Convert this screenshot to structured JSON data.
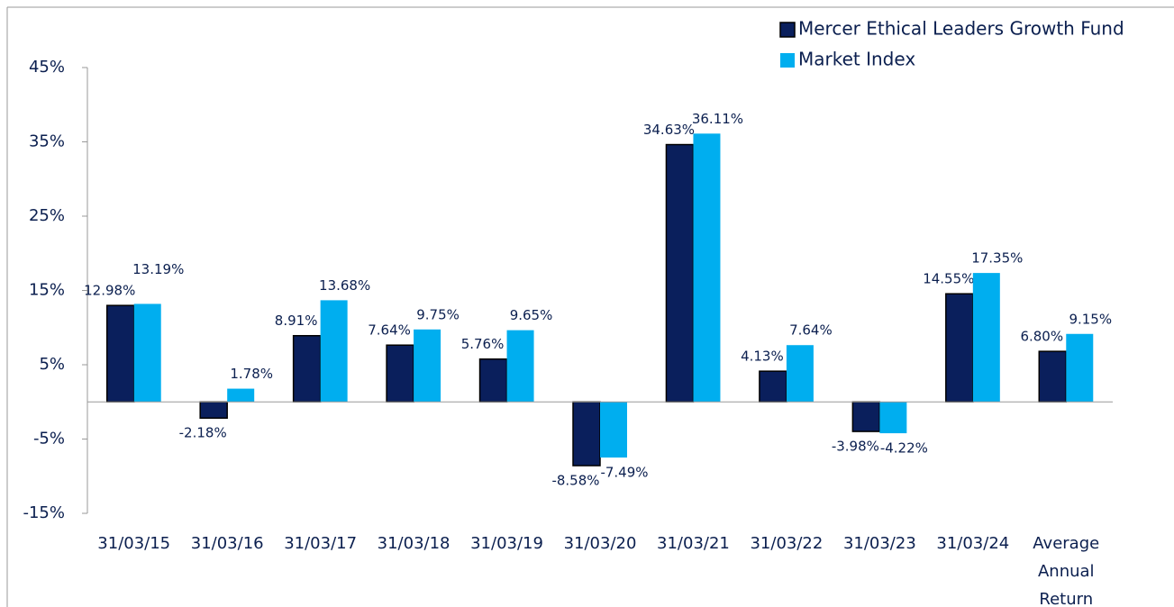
{
  "chart_data": {
    "type": "bar",
    "categories": [
      "31/03/15",
      "31/03/16",
      "31/03/17",
      "31/03/18",
      "31/03/19",
      "31/03/20",
      "31/03/21",
      "31/03/22",
      "31/03/23",
      "31/03/24",
      "Average Annual Return"
    ],
    "series": [
      {
        "name": "Mercer Ethical Leaders Growth Fund",
        "color": "#0a1f5c",
        "values": [
          12.98,
          -2.18,
          8.91,
          7.64,
          5.76,
          -8.58,
          34.63,
          4.13,
          -3.98,
          14.55,
          6.8
        ],
        "value_labels": [
          "12.98%",
          "-2.18%",
          "8.91%",
          "7.64%",
          "5.76%",
          "-8.58%",
          "34.63%",
          "4.13%",
          "-3.98%",
          "14.55%",
          "6.80%"
        ]
      },
      {
        "name": "Market Index",
        "color": "#00aeef",
        "values": [
          13.19,
          1.78,
          13.68,
          9.75,
          9.65,
          -7.49,
          36.11,
          7.64,
          -4.22,
          17.35,
          9.15
        ],
        "value_labels": [
          "13.19%",
          "1.78%",
          "13.68%",
          "9.75%",
          "9.65%",
          "-7.49%",
          "36.11%",
          "7.64%",
          "-4.22%",
          "17.35%",
          "9.15%"
        ]
      }
    ],
    "ylim": [
      -15,
      45
    ],
    "yticks": [
      {
        "value": -15,
        "label": "-15%"
      },
      {
        "value": -5,
        "label": "-5%"
      },
      {
        "value": 5,
        "label": "5%"
      },
      {
        "value": 15,
        "label": "15%"
      },
      {
        "value": 25,
        "label": "25%"
      },
      {
        "value": 35,
        "label": "35%"
      },
      {
        "value": 45,
        "label": "45%"
      }
    ],
    "legend": "upper right"
  }
}
